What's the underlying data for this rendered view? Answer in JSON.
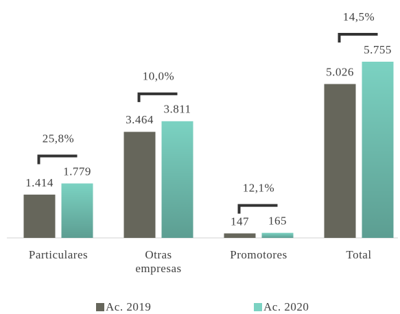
{
  "chart_data": {
    "type": "bar",
    "categories": [
      "Particulares",
      "Otras empresas",
      "Promotores",
      "Total"
    ],
    "series": [
      {
        "name": "Ac. 2019",
        "color": "#66665b",
        "values": [
          1414,
          3464,
          147,
          5026
        ],
        "value_labels": [
          "1.414",
          "3.464",
          "147",
          "5.026"
        ]
      },
      {
        "name": "Ac. 2020",
        "color": "#7bd2c2",
        "values": [
          1779,
          3811,
          165,
          5755
        ],
        "value_labels": [
          "1.779",
          "3.811",
          "165",
          "5.755"
        ]
      }
    ],
    "annotations": [
      "25,8%",
      "10,0%",
      "12,1%",
      "14,5%"
    ]
  }
}
